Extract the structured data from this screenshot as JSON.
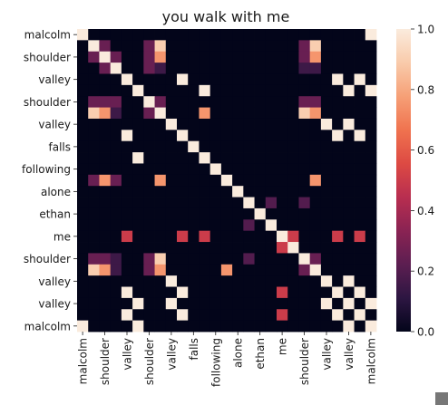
{
  "chart_data": {
    "type": "heatmap",
    "title": "you walk with me",
    "xlabel": "",
    "ylabel": "",
    "labels": [
      "malcolm",
      "shoulder",
      "shoulder",
      "valley",
      "valley",
      "valley",
      "shoulder",
      "shoulder",
      "valley",
      "valley",
      "falls",
      "falls",
      "following",
      "following",
      "alone",
      "alone",
      "ethan",
      "ethan",
      "me",
      "me",
      "shoulder",
      "shoulder",
      "valley",
      "valley",
      "valley",
      "valley",
      "malcolm"
    ],
    "x_tick_labels": [
      "malcolm",
      "shoulder",
      "valley",
      "shoulder",
      "valley",
      "falls",
      "following",
      "alone",
      "ethan",
      "me",
      "shoulder",
      "valley",
      "valley",
      "malcolm"
    ],
    "y_tick_labels": [
      "malcolm",
      "shoulder",
      "valley",
      "shoulder",
      "valley",
      "falls",
      "following",
      "alone",
      "ethan",
      "me",
      "shoulder",
      "valley",
      "valley",
      "malcolm"
    ],
    "tick_every": 2,
    "colorbar": {
      "min": 0.0,
      "max": 1.0,
      "ticks": [
        "0.0",
        "0.2",
        "0.4",
        "0.6",
        "0.8",
        "1.0"
      ]
    },
    "colormap": [
      "#03051a",
      "#2d1642",
      "#5c1e51",
      "#8a2353",
      "#b82e50",
      "#dd4a43",
      "#f0734f",
      "#f6a077",
      "#f9cbab",
      "#faebdd"
    ],
    "matrix": [
      [
        1,
        0,
        0,
        0,
        0,
        0,
        0,
        0,
        0,
        0,
        0,
        0,
        0,
        0,
        0,
        0,
        0,
        0,
        0,
        0,
        0,
        0,
        0,
        0,
        0,
        0,
        1
      ],
      [
        0,
        1,
        0.25,
        0,
        0,
        0,
        0.25,
        0.9,
        0,
        0,
        0,
        0,
        0,
        0,
        0,
        0,
        0,
        0,
        0,
        0,
        0.25,
        0.9,
        0,
        0,
        0,
        0,
        0
      ],
      [
        0,
        0.25,
        1,
        0.25,
        0,
        0,
        0.25,
        0.75,
        0,
        0,
        0,
        0,
        0,
        0,
        0,
        0,
        0,
        0,
        0,
        0,
        0.25,
        0.75,
        0,
        0,
        0,
        0,
        0
      ],
      [
        0,
        0,
        0.25,
        1,
        0,
        0,
        0.25,
        0.15,
        0,
        0,
        0,
        0,
        0,
        0,
        0,
        0,
        0,
        0,
        0,
        0,
        0.15,
        0.15,
        0,
        0,
        0,
        0,
        0
      ],
      [
        0,
        0,
        0,
        0,
        1,
        0,
        0,
        0,
        0,
        1,
        0,
        0,
        0,
        0,
        0,
        0,
        0,
        0,
        0,
        0,
        0,
        0,
        0,
        1,
        0,
        1,
        0
      ],
      [
        0,
        0,
        0,
        0,
        0,
        1,
        0,
        0,
        0,
        0,
        0,
        1,
        0,
        0,
        0,
        0,
        0,
        0,
        0,
        0,
        0,
        0,
        0,
        0,
        1,
        0,
        1
      ],
      [
        0,
        0.25,
        0.25,
        0.25,
        0,
        0,
        1,
        0.25,
        0,
        0,
        0,
        0,
        0,
        0,
        0,
        0,
        0,
        0,
        0,
        0,
        0.25,
        0.25,
        0,
        0,
        0,
        0,
        0
      ],
      [
        0,
        0.9,
        0.75,
        0.15,
        0,
        0,
        0.25,
        1,
        0,
        0,
        0,
        0.75,
        0,
        0,
        0,
        0,
        0,
        0,
        0,
        0,
        0.9,
        0.75,
        0,
        0,
        0,
        0,
        0
      ],
      [
        0,
        0,
        0,
        0,
        0,
        0,
        0,
        0,
        1,
        0,
        0,
        0,
        0,
        0,
        0,
        0,
        0,
        0,
        0,
        0,
        0,
        0,
        1,
        0,
        1,
        0,
        0
      ],
      [
        0,
        0,
        0,
        0,
        1,
        0,
        0,
        0,
        0,
        1,
        0,
        0,
        0,
        0,
        0,
        0,
        0,
        0,
        0,
        0,
        0,
        0,
        0,
        1,
        0,
        1,
        0
      ],
      [
        0,
        0,
        0,
        0,
        0,
        0,
        0,
        0,
        0,
        0,
        1,
        0,
        0,
        0,
        0,
        0,
        0,
        0,
        0,
        0,
        0,
        0,
        0,
        0,
        0,
        0,
        0
      ],
      [
        0,
        0,
        0,
        0,
        0,
        1,
        0,
        0,
        0,
        0,
        0,
        1,
        0,
        0,
        0,
        0,
        0,
        0,
        0,
        0,
        0,
        0,
        0,
        0,
        0,
        0,
        0
      ],
      [
        0,
        0,
        0,
        0,
        0,
        0,
        0,
        0,
        0,
        0,
        0,
        0,
        1,
        0,
        0,
        0,
        0,
        0,
        0,
        0,
        0,
        0,
        0,
        0,
        0,
        0,
        0
      ],
      [
        0,
        0.25,
        0.75,
        0.25,
        0,
        0,
        0,
        0.75,
        0,
        0,
        0,
        0,
        0,
        1,
        0,
        0,
        0,
        0,
        0,
        0,
        0,
        0.75,
        0,
        0,
        0,
        0,
        0
      ],
      [
        0,
        0,
        0,
        0,
        0,
        0,
        0,
        0,
        0,
        0,
        0,
        0,
        0,
        0,
        1,
        0,
        0,
        0,
        0,
        0,
        0,
        0,
        0,
        0,
        0,
        0,
        0
      ],
      [
        0,
        0,
        0,
        0,
        0,
        0,
        0,
        0,
        0,
        0,
        0,
        0,
        0,
        0,
        0,
        1,
        0,
        0.2,
        0,
        0,
        0.2,
        0,
        0,
        0,
        0,
        0,
        0
      ],
      [
        0,
        0,
        0,
        0,
        0,
        0,
        0,
        0,
        0,
        0,
        0,
        0,
        0,
        0,
        0,
        0,
        1,
        0,
        0,
        0,
        0,
        0,
        0,
        0,
        0,
        0,
        0
      ],
      [
        0,
        0,
        0,
        0,
        0,
        0,
        0,
        0,
        0,
        0,
        0,
        0,
        0,
        0,
        0,
        0.2,
        0,
        1,
        0,
        0,
        0,
        0,
        0,
        0,
        0,
        0,
        0
      ],
      [
        0,
        0,
        0,
        0,
        0.5,
        0,
        0,
        0,
        0,
        0.5,
        0,
        0.5,
        0,
        0,
        0,
        0,
        0,
        0,
        1,
        0.5,
        0,
        0,
        0,
        0.5,
        0,
        0.5,
        0
      ],
      [
        0,
        0,
        0,
        0,
        0,
        0,
        0,
        0,
        0,
        0,
        0,
        0,
        0,
        0,
        0,
        0,
        0,
        0,
        0.5,
        1,
        0,
        0,
        0,
        0,
        0,
        0,
        0
      ],
      [
        0,
        0.25,
        0.25,
        0.15,
        0,
        0,
        0.25,
        0.9,
        0,
        0,
        0,
        0,
        0,
        0,
        0,
        0.2,
        0,
        0,
        0,
        0,
        1,
        0.25,
        0,
        0,
        0,
        0,
        0
      ],
      [
        0,
        0.9,
        0.75,
        0.15,
        0,
        0,
        0.25,
        0.75,
        0,
        0,
        0,
        0,
        0,
        0.75,
        0,
        0,
        0,
        0,
        0,
        0,
        0.25,
        1,
        0,
        0,
        0,
        0,
        0
      ],
      [
        0,
        0,
        0,
        0,
        0,
        0,
        0,
        0,
        1,
        0,
        0,
        0,
        0,
        0,
        0,
        0,
        0,
        0,
        0,
        0,
        0,
        0,
        1,
        0,
        1,
        0,
        0
      ],
      [
        0,
        0,
        0,
        0,
        1,
        0,
        0,
        0,
        0,
        1,
        0,
        0,
        0,
        0,
        0,
        0,
        0,
        0,
        0.5,
        0,
        0,
        0,
        0,
        1,
        0,
        1,
        0
      ],
      [
        0,
        0,
        0,
        0,
        0,
        1,
        0,
        0,
        1,
        0,
        0,
        0,
        0,
        0,
        0,
        0,
        0,
        0,
        0,
        0,
        0,
        0,
        1,
        0,
        1,
        0,
        1
      ],
      [
        0,
        0,
        0,
        0,
        1,
        0,
        0,
        0,
        0,
        1,
        0,
        0,
        0,
        0,
        0,
        0,
        0,
        0,
        0.5,
        0,
        0,
        0,
        0,
        1,
        0,
        1,
        0
      ],
      [
        1,
        0,
        0,
        0,
        0,
        1,
        0,
        0,
        0,
        0,
        0,
        0,
        0,
        0,
        0,
        0,
        0,
        0,
        0,
        0,
        0,
        0,
        0,
        0,
        1,
        0,
        1
      ]
    ]
  }
}
